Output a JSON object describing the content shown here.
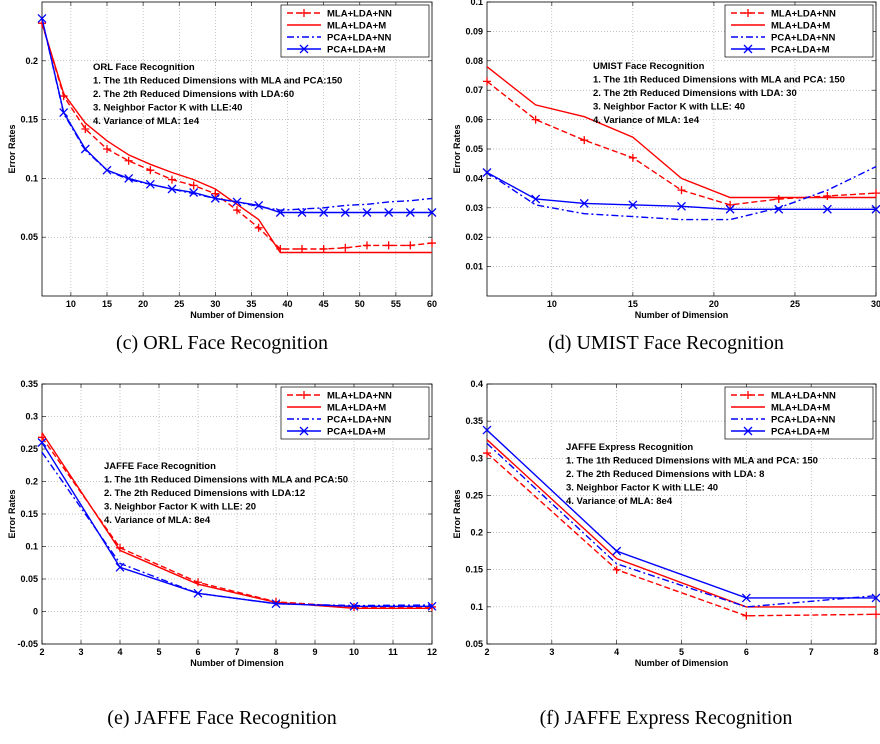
{
  "panels": [
    {
      "caption": "(c) ORL Face Recognition",
      "chart_data": {
        "type": "line",
        "title": "",
        "xlabel": "Number of Dimension",
        "ylabel": "Error Rates",
        "xlim": [
          6,
          60
        ],
        "ylim": [
          0,
          0.25
        ],
        "xticks": [
          10,
          15,
          20,
          25,
          30,
          35,
          40,
          45,
          50,
          55,
          60
        ],
        "yticks": [
          0.05,
          0.1,
          0.15,
          0.2
        ],
        "grid": true,
        "legend": "top-right",
        "notes": [
          "ORL Face Recognition",
          "1. The 1th Reduced Dimensions with MLA and PCA:150",
          "2. The 2th Reduced Dimensions with LDA:60",
          "3. Neighbor Factor K with LLE:40",
          "4. Variance of MLA: 1e4"
        ],
        "x": [
          6,
          9,
          12,
          15,
          18,
          21,
          24,
          27,
          30,
          33,
          36,
          39,
          42,
          45,
          48,
          51,
          54,
          57,
          60
        ],
        "series": [
          {
            "name": "MLA+LDA+NN",
            "style": "dashed",
            "marker": "plus",
            "color": "#ff0000",
            "values": [
              0.232,
              0.17,
              0.142,
              0.125,
              0.115,
              0.107,
              0.099,
              0.094,
              0.087,
              0.073,
              0.058,
              0.04,
              0.04,
              0.04,
              0.041,
              0.043,
              0.043,
              0.043,
              0.045
            ]
          },
          {
            "name": "MLA+LDA+M",
            "style": "solid",
            "marker": "none",
            "color": "#ff0000",
            "values": [
              0.232,
              0.172,
              0.147,
              0.132,
              0.12,
              0.112,
              0.105,
              0.099,
              0.091,
              0.078,
              0.065,
              0.037,
              0.037,
              0.037,
              0.037,
              0.037,
              0.037,
              0.037,
              0.037
            ]
          },
          {
            "name": "PCA+LDA+NN",
            "style": "dashdot",
            "marker": "none",
            "color": "#0000ff",
            "values": [
              0.236,
              0.155,
              0.124,
              0.107,
              0.099,
              0.095,
              0.091,
              0.087,
              0.083,
              0.08,
              0.076,
              0.073,
              0.074,
              0.075,
              0.077,
              0.078,
              0.08,
              0.081,
              0.083
            ]
          },
          {
            "name": "PCA+LDA+M",
            "style": "solid",
            "marker": "cross",
            "color": "#0000ff",
            "values": [
              0.236,
              0.156,
              0.125,
              0.107,
              0.1,
              0.095,
              0.091,
              0.088,
              0.083,
              0.08,
              0.077,
              0.071,
              0.071,
              0.071,
              0.071,
              0.071,
              0.071,
              0.071,
              0.071
            ]
          }
        ]
      }
    },
    {
      "caption": "(d) UMIST Face Recognition",
      "chart_data": {
        "type": "line",
        "title": "",
        "xlabel": "Number of Dimension",
        "ylabel": "Error Rates",
        "xlim": [
          6,
          30
        ],
        "ylim": [
          0,
          0.1
        ],
        "xticks": [
          10,
          15,
          20,
          25,
          30
        ],
        "yticks": [
          0.01,
          0.02,
          0.03,
          0.04,
          0.05,
          0.06,
          0.07,
          0.08,
          0.09,
          0.1
        ],
        "grid": true,
        "legend": "top-right",
        "notes": [
          "UMIST Face Recognition",
          "1. The 1th Reduced Dimensions with MLA and PCA: 150",
          "2. The 2th Reduced Dimensions with LDA: 30",
          "3. Neighbor Factor K with LLE: 40",
          "4. Variance of MLA: 1e4"
        ],
        "x": [
          6,
          9,
          12,
          15,
          18,
          21,
          24,
          27,
          30
        ],
        "series": [
          {
            "name": "MLA+LDA+NN",
            "style": "dashed",
            "marker": "plus",
            "color": "#ff0000",
            "values": [
              0.073,
              0.06,
              0.053,
              0.047,
              0.036,
              0.031,
              0.033,
              0.034,
              0.035
            ]
          },
          {
            "name": "MLA+LDA+M",
            "style": "solid",
            "marker": "none",
            "color": "#ff0000",
            "values": [
              0.078,
              0.065,
              0.061,
              0.054,
              0.04,
              0.0335,
              0.0335,
              0.0335,
              0.0335
            ]
          },
          {
            "name": "PCA+LDA+NN",
            "style": "dashdot",
            "marker": "none",
            "color": "#0000ff",
            "values": [
              0.042,
              0.031,
              0.028,
              0.027,
              0.026,
              0.026,
              0.03,
              0.036,
              0.044
            ]
          },
          {
            "name": "PCA+LDA+M",
            "style": "solid",
            "marker": "cross",
            "color": "#0000ff",
            "values": [
              0.042,
              0.033,
              0.0315,
              0.031,
              0.0305,
              0.0295,
              0.0295,
              0.0295,
              0.0295
            ]
          }
        ]
      }
    },
    {
      "caption": "(e) JAFFE Face Recognition",
      "chart_data": {
        "type": "line",
        "title": "",
        "xlabel": "Number of Dimension",
        "ylabel": "Error Rates",
        "xlim": [
          2,
          12
        ],
        "ylim": [
          -0.05,
          0.35
        ],
        "xticks": [
          2,
          3,
          4,
          5,
          6,
          7,
          8,
          9,
          10,
          11,
          12
        ],
        "yticks": [
          -0.05,
          0,
          0.05,
          0.1,
          0.15,
          0.2,
          0.25,
          0.3,
          0.35
        ],
        "grid": true,
        "legend": "top-right",
        "notes": [
          "JAFFE Face Recognition",
          "1. The 1th Reduced Dimensions with MLA and PCA:50",
          "2. The 2th Reduced Dimensions with LDA:12",
          "3. Neighbor Factor K with LLE: 20",
          "4. Variance of MLA: 8e4"
        ],
        "x": [
          2,
          4,
          6,
          8,
          10,
          12
        ],
        "series": [
          {
            "name": "MLA+LDA+NN",
            "style": "dashed",
            "marker": "plus",
            "color": "#ff0000",
            "values": [
              0.268,
              0.098,
              0.045,
              0.015,
              0.007,
              0.007
            ]
          },
          {
            "name": "MLA+LDA+M",
            "style": "solid",
            "marker": "none",
            "color": "#ff0000",
            "values": [
              0.275,
              0.094,
              0.042,
              0.014,
              0.005,
              0.005
            ]
          },
          {
            "name": "PCA+LDA+NN",
            "style": "dashdot",
            "marker": "none",
            "color": "#0000ff",
            "values": [
              0.245,
              0.074,
              0.028,
              0.012,
              0.009,
              0.01
            ]
          },
          {
            "name": "PCA+LDA+M",
            "style": "solid",
            "marker": "cross",
            "color": "#0000ff",
            "values": [
              0.26,
              0.068,
              0.028,
              0.012,
              0.008,
              0.008
            ]
          }
        ]
      }
    },
    {
      "caption": "(f) JAFFE Express Recognition",
      "chart_data": {
        "type": "line",
        "title": "",
        "xlabel": "Number of Dimension",
        "ylabel": "Error Rates",
        "xlim": [
          2,
          8
        ],
        "ylim": [
          0.05,
          0.4
        ],
        "xticks": [
          2,
          3,
          4,
          5,
          6,
          7,
          8
        ],
        "yticks": [
          0.05,
          0.1,
          0.15,
          0.2,
          0.25,
          0.3,
          0.35,
          0.4
        ],
        "grid": true,
        "legend": "top-right",
        "notes": [
          "JAFFE Express Recognition",
          "1. The 1th Reduced Dimensions with MLA and PCA: 150",
          "2. The 2th Reduced Dimensions with LDA: 8",
          "3. Neighbor Factor K with LLE: 40",
          "4. Variance of MLA: 8e4"
        ],
        "x": [
          2,
          4,
          6,
          8
        ],
        "series": [
          {
            "name": "MLA+LDA+NN",
            "style": "dashed",
            "marker": "plus",
            "color": "#ff0000",
            "values": [
              0.307,
              0.15,
              0.088,
              0.09
            ]
          },
          {
            "name": "MLA+LDA+M",
            "style": "solid",
            "marker": "none",
            "color": "#ff0000",
            "values": [
              0.325,
              0.165,
              0.1,
              0.1
            ]
          },
          {
            "name": "PCA+LDA+NN",
            "style": "dashdot",
            "marker": "none",
            "color": "#0000ff",
            "values": [
              0.32,
              0.158,
              0.1,
              0.115
            ]
          },
          {
            "name": "PCA+LDA+M",
            "style": "solid",
            "marker": "cross",
            "color": "#0000ff",
            "values": [
              0.338,
              0.175,
              0.112,
              0.112
            ]
          }
        ]
      }
    }
  ]
}
